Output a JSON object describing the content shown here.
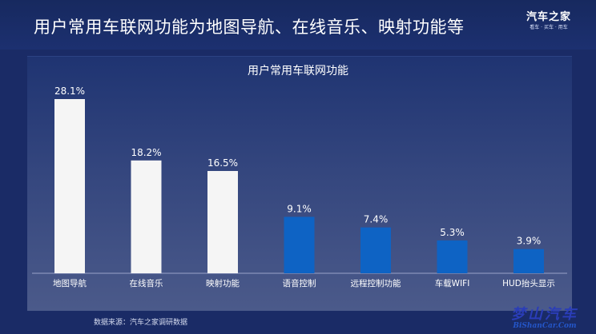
{
  "header": {
    "title": "用户常用车联网功能为地图导航、在线音乐、映射功能等",
    "logo_main": "汽车之家",
    "logo_sub": "看车 · 买车 · 用车"
  },
  "source_note": "数据来源：汽车之家调研数据",
  "watermark": {
    "main": "梦山汽车",
    "sub": "BiShanCar.Com"
  },
  "colors": {
    "bar_highlight": "#f5f5f5",
    "bar_regular": "#0e63c4",
    "text": "#ffffff"
  },
  "chart_data": {
    "type": "bar",
    "title": "用户常用车联网功能",
    "categories": [
      "地图导航",
      "在线音乐",
      "映射功能",
      "语音控制",
      "远程控制功能",
      "车载WIFI",
      "HUD抬头显示"
    ],
    "values": [
      28.1,
      18.2,
      16.5,
      9.1,
      7.4,
      5.3,
      3.9
    ],
    "value_labels": [
      "28.1%",
      "18.2%",
      "16.5%",
      "9.1%",
      "7.4%",
      "5.3%",
      "3.9%"
    ],
    "highlighted": [
      true,
      true,
      true,
      false,
      false,
      false,
      false
    ],
    "unit": "%",
    "xlabel": "",
    "ylabel": "",
    "ylim": [
      0,
      30
    ],
    "grid": false,
    "legend": "none"
  }
}
